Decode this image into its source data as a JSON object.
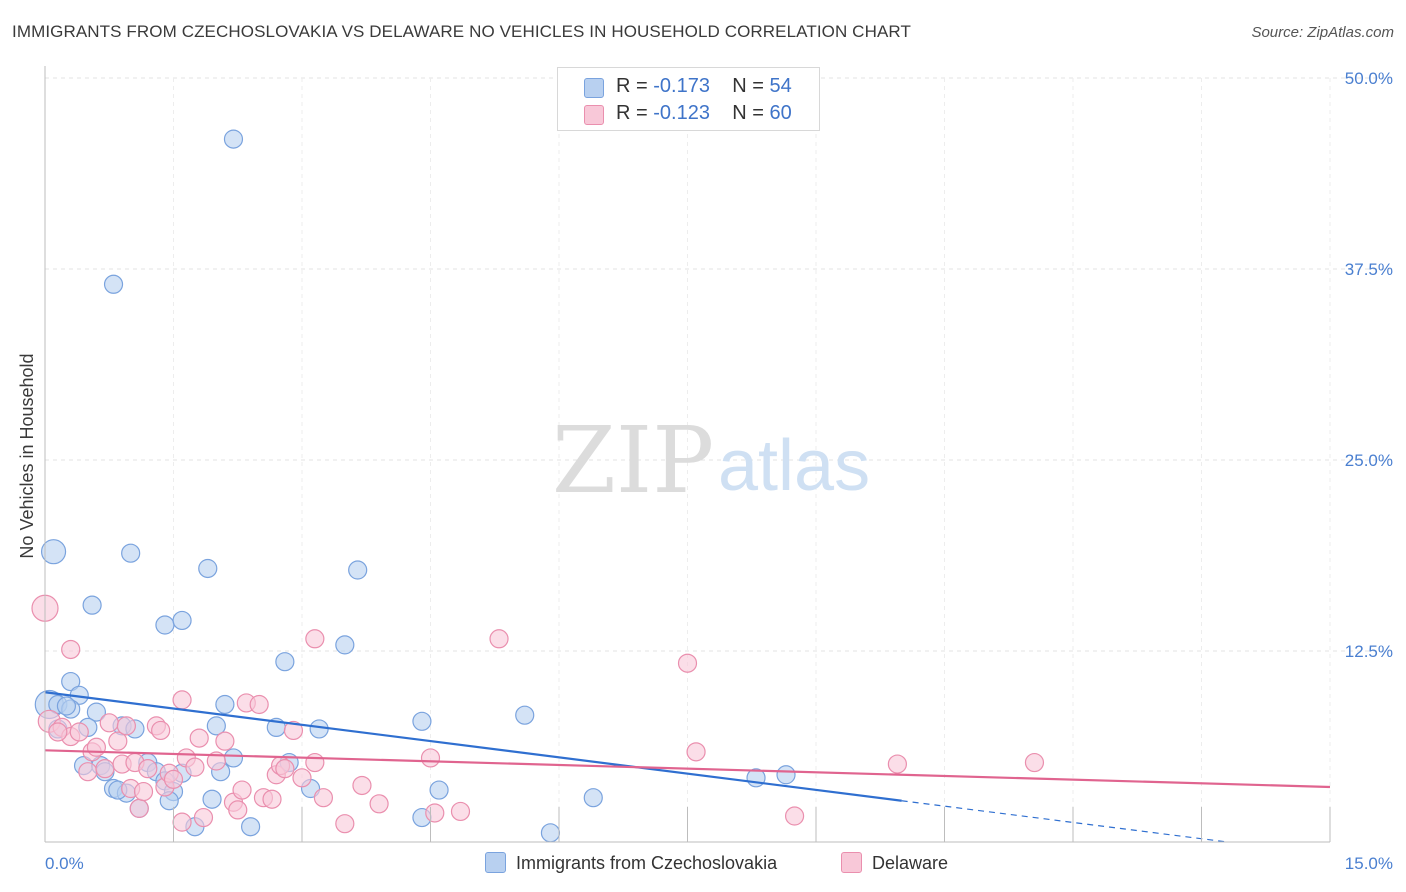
{
  "title": "IMMIGRANTS FROM CZECHOSLOVAKIA VS DELAWARE NO VEHICLES IN HOUSEHOLD CORRELATION CHART",
  "source": "Source: ZipAtlas.com",
  "watermark": {
    "zip": "ZIP",
    "atlas": "atlas"
  },
  "legend": {
    "r_label": "R =",
    "n_label": "N =",
    "series": [
      {
        "name": "Immigrants from Czechoslovakia",
        "r": "-0.173",
        "n": "54",
        "fill": "#b8d0f0",
        "stroke": "#7aa3de"
      },
      {
        "name": "Delaware",
        "r": "-0.123",
        "n": "60",
        "fill": "#f8c8d8",
        "stroke": "#ea8fae"
      }
    ]
  },
  "chart_data": {
    "type": "scatter",
    "title": "IMMIGRANTS FROM CZECHOSLOVAKIA VS DELAWARE NO VEHICLES IN HOUSEHOLD CORRELATION CHART",
    "xlabel": "",
    "ylabel": "No Vehicles in Household",
    "xlim": [
      0,
      15
    ],
    "ylim": [
      0,
      50
    ],
    "x_tick_labels": [
      "0.0%",
      "15.0%"
    ],
    "y_ticks": [
      12.5,
      25.0,
      37.5,
      50.0
    ],
    "y_tick_labels": [
      "12.5%",
      "25.0%",
      "37.5%",
      "50.0%"
    ],
    "grid": true,
    "legend_position": "top-center",
    "series": [
      {
        "name": "Immigrants from Czechoslovakia",
        "color": "#7aa3de",
        "fill": "#b8d0f0",
        "trend": {
          "x0": 0,
          "y0": 9.8,
          "x1": 10.0,
          "y1": 2.7,
          "dash_to_x": 13.8
        },
        "points": [
          [
            0.1,
            19.0,
            12
          ],
          [
            0.05,
            9.0,
            14
          ],
          [
            0.15,
            9.0,
            9
          ],
          [
            0.3,
            10.5,
            9
          ],
          [
            0.4,
            9.6,
            9
          ],
          [
            0.3,
            8.7,
            9
          ],
          [
            0.6,
            8.5,
            9
          ],
          [
            0.5,
            7.5,
            9
          ],
          [
            0.9,
            7.6,
            9
          ],
          [
            0.55,
            15.5,
            9
          ],
          [
            1.0,
            18.9,
            9
          ],
          [
            1.4,
            14.2,
            9
          ],
          [
            1.6,
            14.5,
            9
          ],
          [
            1.9,
            17.9,
            9
          ],
          [
            2.2,
            46.0,
            9
          ],
          [
            0.8,
            36.5,
            9
          ],
          [
            1.2,
            5.2,
            9
          ],
          [
            1.3,
            4.6,
            9
          ],
          [
            1.4,
            4.0,
            9
          ],
          [
            1.5,
            3.3,
            9
          ],
          [
            1.45,
            2.7,
            9
          ],
          [
            1.1,
            2.2,
            9
          ],
          [
            0.45,
            5.0,
            9
          ],
          [
            0.65,
            5.0,
            9
          ],
          [
            0.7,
            4.6,
            9
          ],
          [
            0.8,
            3.5,
            9
          ],
          [
            0.95,
            3.2,
            9
          ],
          [
            0.85,
            3.4,
            9
          ],
          [
            1.6,
            4.5,
            9
          ],
          [
            2.0,
            7.6,
            9
          ],
          [
            2.1,
            9.0,
            9
          ],
          [
            2.2,
            5.5,
            9
          ],
          [
            2.05,
            4.6,
            9
          ],
          [
            1.95,
            2.8,
            9
          ],
          [
            1.75,
            1.0,
            9
          ],
          [
            2.4,
            1.0,
            9
          ],
          [
            2.7,
            7.5,
            9
          ],
          [
            2.8,
            11.8,
            9
          ],
          [
            2.85,
            5.2,
            9
          ],
          [
            3.2,
            7.4,
            9
          ],
          [
            3.1,
            3.5,
            9
          ],
          [
            3.5,
            12.9,
            9
          ],
          [
            3.65,
            17.8,
            9
          ],
          [
            4.4,
            7.9,
            9
          ],
          [
            4.4,
            1.6,
            9
          ],
          [
            4.6,
            3.4,
            9
          ],
          [
            5.6,
            8.3,
            9
          ],
          [
            5.9,
            0.6,
            9
          ],
          [
            6.4,
            2.9,
            9
          ],
          [
            8.3,
            4.2,
            9
          ],
          [
            8.65,
            4.4,
            9
          ],
          [
            0.25,
            8.9,
            9
          ],
          [
            0.15,
            7.4,
            9
          ],
          [
            1.05,
            7.4,
            9
          ]
        ]
      },
      {
        "name": "Delaware",
        "color": "#ea8fae",
        "fill": "#f8c8d8",
        "trend": {
          "x0": 0,
          "y0": 6.0,
          "x1": 15.0,
          "y1": 3.6
        },
        "points": [
          [
            0.0,
            15.3,
            13
          ],
          [
            0.05,
            7.9,
            11
          ],
          [
            0.2,
            7.5,
            9
          ],
          [
            0.3,
            12.6,
            9
          ],
          [
            0.3,
            6.9,
            9
          ],
          [
            0.4,
            7.2,
            9
          ],
          [
            0.5,
            4.6,
            9
          ],
          [
            0.55,
            5.9,
            9
          ],
          [
            0.6,
            6.2,
            9
          ],
          [
            0.7,
            4.8,
            9
          ],
          [
            0.75,
            7.8,
            9
          ],
          [
            0.85,
            6.6,
            9
          ],
          [
            0.9,
            5.1,
            9
          ],
          [
            0.95,
            7.6,
            9
          ],
          [
            1.0,
            3.5,
            9
          ],
          [
            1.05,
            5.2,
            9
          ],
          [
            1.1,
            2.2,
            9
          ],
          [
            1.15,
            3.3,
            9
          ],
          [
            1.2,
            4.8,
            9
          ],
          [
            1.3,
            7.6,
            9
          ],
          [
            1.35,
            7.3,
            9
          ],
          [
            1.4,
            3.6,
            9
          ],
          [
            1.45,
            4.5,
            9
          ],
          [
            1.5,
            4.1,
            9
          ],
          [
            1.6,
            1.3,
            9
          ],
          [
            1.6,
            9.3,
            9
          ],
          [
            1.65,
            5.5,
            9
          ],
          [
            1.75,
            4.9,
            9
          ],
          [
            1.8,
            6.8,
            9
          ],
          [
            1.85,
            1.6,
            9
          ],
          [
            2.0,
            5.3,
            9
          ],
          [
            2.1,
            6.6,
            9
          ],
          [
            2.2,
            2.6,
            9
          ],
          [
            2.25,
            2.1,
            9
          ],
          [
            2.3,
            3.4,
            9
          ],
          [
            2.35,
            9.1,
            9
          ],
          [
            2.5,
            9.0,
            9
          ],
          [
            2.55,
            2.9,
            9
          ],
          [
            2.65,
            2.8,
            9
          ],
          [
            2.7,
            4.4,
            9
          ],
          [
            2.75,
            5.0,
            9
          ],
          [
            2.8,
            4.8,
            9
          ],
          [
            2.9,
            7.3,
            9
          ],
          [
            3.0,
            4.2,
            9
          ],
          [
            3.15,
            13.3,
            9
          ],
          [
            3.15,
            5.2,
            9
          ],
          [
            3.25,
            2.9,
            9
          ],
          [
            3.5,
            1.2,
            9
          ],
          [
            3.7,
            3.7,
            9
          ],
          [
            3.9,
            2.5,
            9
          ],
          [
            4.5,
            5.5,
            9
          ],
          [
            4.55,
            1.9,
            9
          ],
          [
            4.85,
            2.0,
            9
          ],
          [
            5.3,
            13.3,
            9
          ],
          [
            7.5,
            11.7,
            9
          ],
          [
            7.6,
            5.9,
            9
          ],
          [
            8.75,
            1.7,
            9
          ],
          [
            9.95,
            5.1,
            9
          ],
          [
            11.55,
            5.2,
            9
          ],
          [
            0.15,
            7.2,
            9
          ]
        ]
      }
    ]
  }
}
